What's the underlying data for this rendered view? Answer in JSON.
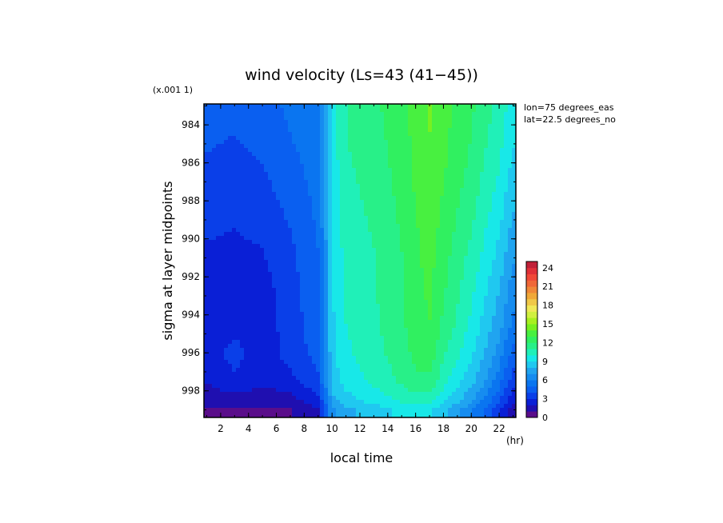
{
  "chart_data": {
    "type": "heatmap",
    "title": "wind velocity (Ls=43 (41−45))",
    "xlabel": "local time",
    "ylabel": "sigma at layer midpoints",
    "x_unit": "(hr)",
    "y_scale_note": "(x.001 1)",
    "annotations": [
      "lon=75 degrees_eas",
      "lat=22.5 degrees_no"
    ],
    "xlim": [
      0.8,
      23.2
    ],
    "ylim": [
      999.4,
      982.9
    ],
    "x_ticks": [
      2,
      4,
      6,
      8,
      10,
      12,
      14,
      16,
      18,
      20,
      22
    ],
    "y_ticks": [
      984,
      986,
      988,
      990,
      992,
      994,
      996,
      998
    ],
    "y": [
      983,
      984.5,
      986.5,
      988.5,
      990.5,
      992.5,
      994.5,
      996,
      997.5,
      998.5,
      999
    ],
    "x": [
      1,
      3,
      5,
      7,
      9,
      9.5,
      10,
      11,
      13,
      15,
      16,
      17,
      18,
      19,
      20,
      21,
      22,
      23
    ],
    "z": [
      [
        4.5,
        4.2,
        4.6,
        5.2,
        5.8,
        7.0,
        9.5,
        11.0,
        11.8,
        12.6,
        13.4,
        14.2,
        13.4,
        12.8,
        12.2,
        11.4,
        10.6,
        9.5
      ],
      [
        4.2,
        4.0,
        4.4,
        5.0,
        5.6,
        7.0,
        9.5,
        11.0,
        11.6,
        12.6,
        13.3,
        14.0,
        13.3,
        12.6,
        12.0,
        11.2,
        10.4,
        9.2
      ],
      [
        3.8,
        3.6,
        3.9,
        4.6,
        5.4,
        6.9,
        9.3,
        10.8,
        11.4,
        12.4,
        13.2,
        13.8,
        13.1,
        12.4,
        11.7,
        10.8,
        10.0,
        8.6
      ],
      [
        3.4,
        3.2,
        3.5,
        4.2,
        5.2,
        6.8,
        9.2,
        10.6,
        11.2,
        12.2,
        13.0,
        13.6,
        12.8,
        12.0,
        11.3,
        10.3,
        9.4,
        8.0
      ],
      [
        2.9,
        2.8,
        3.0,
        3.8,
        5.0,
        6.7,
        9.0,
        10.4,
        11.0,
        12.0,
        12.8,
        13.4,
        12.5,
        11.6,
        10.8,
        9.8,
        8.8,
        7.3
      ],
      [
        2.5,
        2.4,
        2.6,
        3.6,
        4.8,
        6.6,
        8.9,
        10.2,
        10.9,
        11.9,
        12.7,
        13.2,
        12.2,
        11.2,
        10.3,
        9.2,
        8.1,
        6.5
      ],
      [
        2.3,
        2.6,
        2.4,
        3.5,
        4.6,
        6.5,
        8.8,
        10.0,
        10.8,
        11.8,
        12.5,
        13.0,
        11.8,
        10.8,
        9.8,
        8.6,
        7.4,
        5.7
      ],
      [
        2.4,
        3.4,
        2.4,
        3.4,
        4.4,
        6.4,
        8.7,
        9.8,
        10.6,
        11.6,
        12.3,
        12.6,
        11.2,
        10.2,
        9.2,
        7.9,
        6.6,
        4.6
      ],
      [
        2.1,
        2.8,
        2.2,
        2.7,
        3.8,
        6.1,
        8.4,
        9.4,
        10.2,
        11.2,
        11.8,
        11.8,
        10.4,
        9.3,
        8.3,
        7.0,
        5.4,
        3.4
      ],
      [
        1.3,
        1.5,
        1.4,
        1.6,
        2.6,
        5.2,
        7.6,
        8.6,
        9.4,
        10.2,
        10.6,
        10.4,
        9.2,
        8.2,
        7.2,
        5.8,
        4.2,
        2.2
      ],
      [
        0.8,
        0.9,
        0.8,
        1.0,
        1.8,
        4.2,
        6.8,
        7.8,
        8.5,
        9.2,
        9.5,
        9.2,
        8.2,
        7.2,
        6.2,
        4.8,
        3.2,
        1.2
      ]
    ],
    "colorbar": {
      "min": 0,
      "max": 25,
      "step": 1,
      "ticks": [
        0,
        3,
        6,
        9,
        12,
        15,
        18,
        21,
        24
      ],
      "colors": [
        "#5a0d8a",
        "#1f0fb0",
        "#0a1fd6",
        "#0a3fe8",
        "#0a5ff0",
        "#0a75f0",
        "#168cf0",
        "#20a4f0",
        "#20c8f0",
        "#18e8e8",
        "#20f0b8",
        "#28f088",
        "#30f060",
        "#48f040",
        "#78f020",
        "#a8f020",
        "#d0f040",
        "#f0e858",
        "#f0c848",
        "#f0a838",
        "#f08838",
        "#f06838",
        "#f04838",
        "#e03038",
        "#c02038"
      ]
    },
    "grid": false,
    "legend": "colorbar right"
  }
}
